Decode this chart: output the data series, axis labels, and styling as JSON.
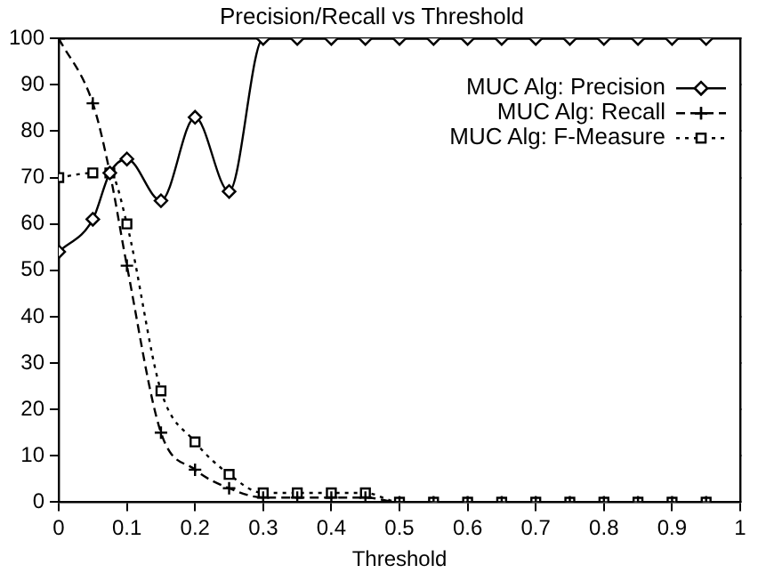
{
  "chart_data": {
    "type": "line",
    "title": "Precision/Recall vs Threshold",
    "xlabel": "Threshold",
    "x": [
      0,
      0.05,
      0.075,
      0.1,
      0.15,
      0.2,
      0.25,
      0.3,
      0.35,
      0.4,
      0.45,
      0.5,
      0.55,
      0.6,
      0.65,
      0.7,
      0.75,
      0.8,
      0.85,
      0.9,
      0.95
    ],
    "series": [
      {
        "name": "MUC Alg: Precision",
        "color": "#000000",
        "marker": "diamond",
        "line_style": "solid",
        "values": [
          54,
          61,
          71,
          74,
          65,
          83,
          67,
          100,
          100,
          100,
          100,
          100,
          100,
          100,
          100,
          100,
          100,
          100,
          100,
          100,
          100
        ]
      },
      {
        "name": "MUC Alg: Recall",
        "color": "#000000",
        "marker": "cross",
        "line_style": "dashed",
        "values": [
          100,
          86,
          71,
          51,
          15,
          7,
          3,
          1,
          1,
          1,
          1,
          0,
          0,
          0,
          0,
          0,
          0,
          0,
          0,
          0,
          0
        ]
      },
      {
        "name": "MUC Alg: F-Measure",
        "color": "#000000",
        "marker": "square",
        "line_style": "dotted",
        "values": [
          70,
          71,
          71,
          60,
          24,
          13,
          6,
          2,
          2,
          2,
          2,
          0,
          0,
          0,
          0,
          0,
          0,
          0,
          0,
          0,
          0
        ]
      }
    ],
    "xlim": [
      0,
      1
    ],
    "xticks": [
      0,
      0.1,
      0.2,
      0.3,
      0.4,
      0.5,
      0.6,
      0.7,
      0.8,
      0.9,
      1
    ],
    "ylim": [
      0,
      100
    ],
    "yticks": [
      0,
      10,
      20,
      30,
      40,
      50,
      60,
      70,
      80,
      90,
      100
    ],
    "grid": false,
    "legend": "top right"
  }
}
